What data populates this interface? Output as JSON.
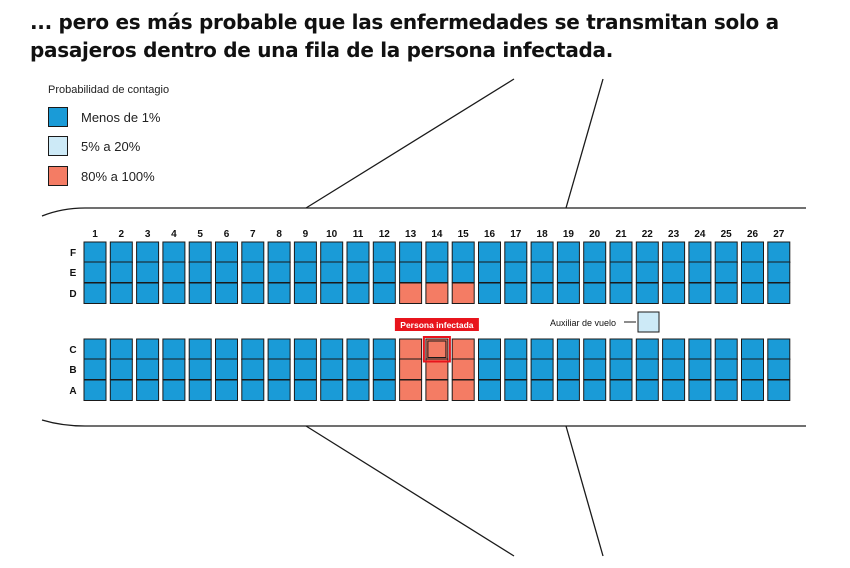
{
  "title": "... pero es más probable que las enfermedades se transmitan solo a pasajeros dentro de una fila de la persona infectada.",
  "legend": {
    "title": "Probabilidad de contagio",
    "items": [
      {
        "label": "Menos de 1%",
        "color": "#1a9bd7"
      },
      {
        "label": "5% a 20%",
        "color": "#cdeaf7"
      },
      {
        "label": "80% a 100%",
        "color": "#f47c64"
      }
    ]
  },
  "colors": {
    "low": "#1a9bd7",
    "medium": "#cdeaf7",
    "high": "#f47c64",
    "tag": "#e8141c",
    "outline": "#1a1a1a"
  },
  "seat_map": {
    "columns": [
      "1",
      "2",
      "3",
      "4",
      "5",
      "6",
      "7",
      "8",
      "9",
      "10",
      "11",
      "12",
      "13",
      "14",
      "15",
      "16",
      "17",
      "18",
      "19",
      "20",
      "21",
      "22",
      "23",
      "24",
      "25",
      "26",
      "27"
    ],
    "upper_rows": [
      "F",
      "E",
      "D"
    ],
    "lower_rows": [
      "C",
      "B",
      "A"
    ],
    "high_risk_seats": [
      "13D",
      "14D",
      "15D",
      "13C",
      "14C",
      "15C",
      "13B",
      "14B",
      "15B",
      "13A",
      "14A",
      "15A"
    ],
    "infected_seat": "14C",
    "infected_label": "Persona infectada",
    "attendant_label": "Auxiliar de vuelo",
    "attendant_level": "medium"
  }
}
